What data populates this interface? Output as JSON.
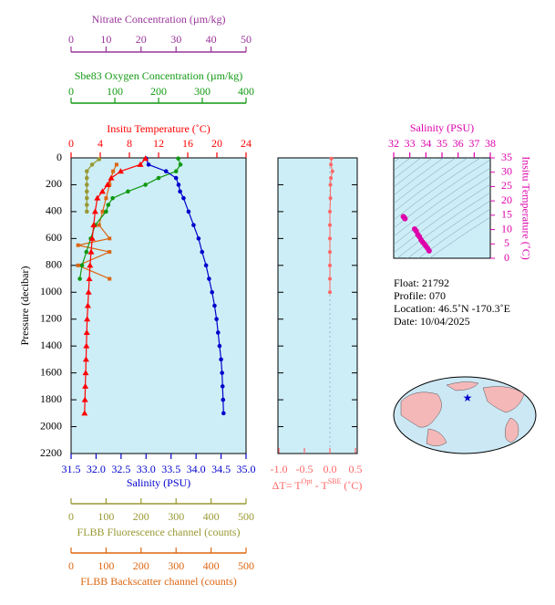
{
  "chart_data": [
    {
      "type": "line",
      "ylabel": "Pressure (decibar)",
      "ylim": [
        0,
        2200
      ],
      "yticks": [
        0,
        200,
        400,
        600,
        800,
        1000,
        1200,
        1400,
        1600,
        1800,
        2000,
        2200
      ],
      "x_axes": [
        {
          "label": "Nitrate Concentration (µm/kg)",
          "color": "#993399",
          "xlim": [
            0,
            50
          ],
          "xticks": [
            0,
            10,
            20,
            30,
            40,
            50
          ]
        },
        {
          "label": "Sbe83 Oxygen Concentration (µm/kg)",
          "color": "#119911",
          "xlim": [
            0,
            400
          ],
          "xticks": [
            0,
            100,
            200,
            300,
            400
          ]
        },
        {
          "label": "Insitu Temperature (˚C)",
          "color": "#ff0000",
          "xlim": [
            0,
            24
          ],
          "xticks": [
            0,
            4,
            8,
            12,
            16,
            20,
            24
          ]
        },
        {
          "label": "Salinity (PSU)",
          "color": "#0000cc",
          "xlim": [
            31.5,
            35
          ],
          "xticks": [
            31.5,
            {
              "value": 32,
              "label": "32.0"
            },
            32.5,
            {
              "value": 33,
              "label": "33.0"
            },
            33.5,
            {
              "value": 34,
              "label": "34.0"
            },
            34.5,
            {
              "value": 35,
              "label": "35.0"
            }
          ]
        },
        {
          "label": "FLBB Fluorescence channel (counts)",
          "color": "#999933",
          "xlim": [
            0,
            500
          ],
          "xticks": [
            0,
            100,
            200,
            300,
            400,
            500
          ]
        },
        {
          "label": "FLBB Backscatter channel (counts)",
          "color": "#dd6611",
          "xlim": [
            0,
            500
          ],
          "xticks": [
            0,
            100,
            200,
            300,
            400,
            500
          ]
        }
      ],
      "series": [
        {
          "axis": 5,
          "color": "#dd6611",
          "marker": "square",
          "pressure": [
            50,
            100,
            200,
            300,
            400,
            500,
            600,
            650,
            700,
            800,
            900
          ],
          "values": [
            130,
            120,
            110,
            100,
            90,
            80,
            110,
            20,
            110,
            20,
            110
          ]
        },
        {
          "axis": 4,
          "color": "#999933",
          "marker": "circle",
          "pressure": [
            10,
            50,
            100,
            150,
            200,
            250,
            300,
            350,
            400
          ],
          "values": [
            80,
            60,
            45,
            45,
            45,
            45,
            45,
            45,
            45
          ]
        },
        {
          "axis": 1,
          "color": "#119911",
          "marker": "circle",
          "pressure": [
            5,
            50,
            100,
            150,
            200,
            250,
            300,
            350,
            400,
            500,
            600,
            700,
            800,
            900
          ],
          "values": [
            245,
            250,
            240,
            200,
            170,
            130,
            95,
            85,
            80,
            55,
            45,
            35,
            25,
            20
          ]
        },
        {
          "axis": 3,
          "color": "#0000cc",
          "marker": "circle",
          "pressure": [
            5,
            50,
            100,
            150,
            200,
            250,
            300,
            400,
            500,
            600,
            700,
            800,
            900,
            1000,
            1100,
            1200,
            1300,
            1400,
            1500,
            1600,
            1700,
            1800,
            1900
          ],
          "values": [
            33.0,
            33.05,
            33.4,
            33.6,
            33.65,
            33.68,
            33.75,
            33.85,
            33.95,
            34.05,
            34.12,
            34.2,
            34.26,
            34.32,
            34.37,
            34.41,
            34.44,
            34.47,
            34.5,
            34.52,
            34.53,
            34.54,
            34.55
          ]
        },
        {
          "axis": 2,
          "color": "#ff0000",
          "marker": "triangle",
          "pressure": [
            5,
            50,
            100,
            150,
            200,
            250,
            300,
            400,
            500,
            600,
            700,
            800,
            900,
            1000,
            1100,
            1200,
            1300,
            1400,
            1500,
            1600,
            1700,
            1800,
            1900
          ],
          "values": [
            10.2,
            9.5,
            6.8,
            5.5,
            5.0,
            4.3,
            3.6,
            3.3,
            3.1,
            2.9,
            2.75,
            2.6,
            2.5,
            2.4,
            2.3,
            2.2,
            2.15,
            2.1,
            2.05,
            2.0,
            1.95,
            1.9,
            1.85
          ]
        }
      ]
    },
    {
      "type": "line",
      "xlabel_parts": [
        "ΔT= T",
        "Opt",
        " - T",
        "SBE",
        " (˚C)"
      ],
      "color": "#ff6666",
      "xlim": [
        -1,
        0.5
      ],
      "xticks": [
        {
          "value": -1,
          "label": "-1.0"
        },
        {
          "value": -0.5,
          "label": "-0.5"
        },
        {
          "value": 0,
          "label": "0.0"
        },
        0.5
      ],
      "ylim": [
        0,
        2200
      ],
      "pressure": [
        5,
        50,
        100,
        150,
        200,
        300,
        400,
        500,
        600,
        700,
        800,
        900,
        1000
      ],
      "values": [
        0.03,
        0.02,
        0.05,
        0.02,
        0.01,
        0.01,
        0.0,
        0.0,
        0.0,
        0.0,
        0.0,
        0.0,
        0.0
      ]
    },
    {
      "type": "scatter",
      "title": "Salinity (PSU)",
      "ylabel": "Insitu Temperature (˚C)",
      "color": "#dd00aa",
      "xlim": [
        32,
        38
      ],
      "xticks": [
        32,
        33,
        34,
        35,
        36,
        37,
        38
      ],
      "ylim": [
        0,
        35
      ],
      "yticks": [
        0,
        5,
        10,
        15,
        20,
        25,
        30,
        35
      ],
      "x": [
        32.6,
        32.7,
        32.65,
        33.3,
        33.4,
        33.5,
        33.6,
        33.7,
        33.8,
        33.9,
        34.0,
        34.1,
        34.2
      ],
      "values": [
        14.5,
        13.8,
        14.2,
        10.2,
        9.5,
        8.2,
        7.5,
        6.4,
        5.6,
        5.0,
        4.2,
        3.5,
        2.6
      ]
    }
  ],
  "info": [
    "Float:  21792",
    "Profile:  070",
    "Location:  46.5˚N  -170.3˚E",
    "Date:  10/04/2025"
  ]
}
